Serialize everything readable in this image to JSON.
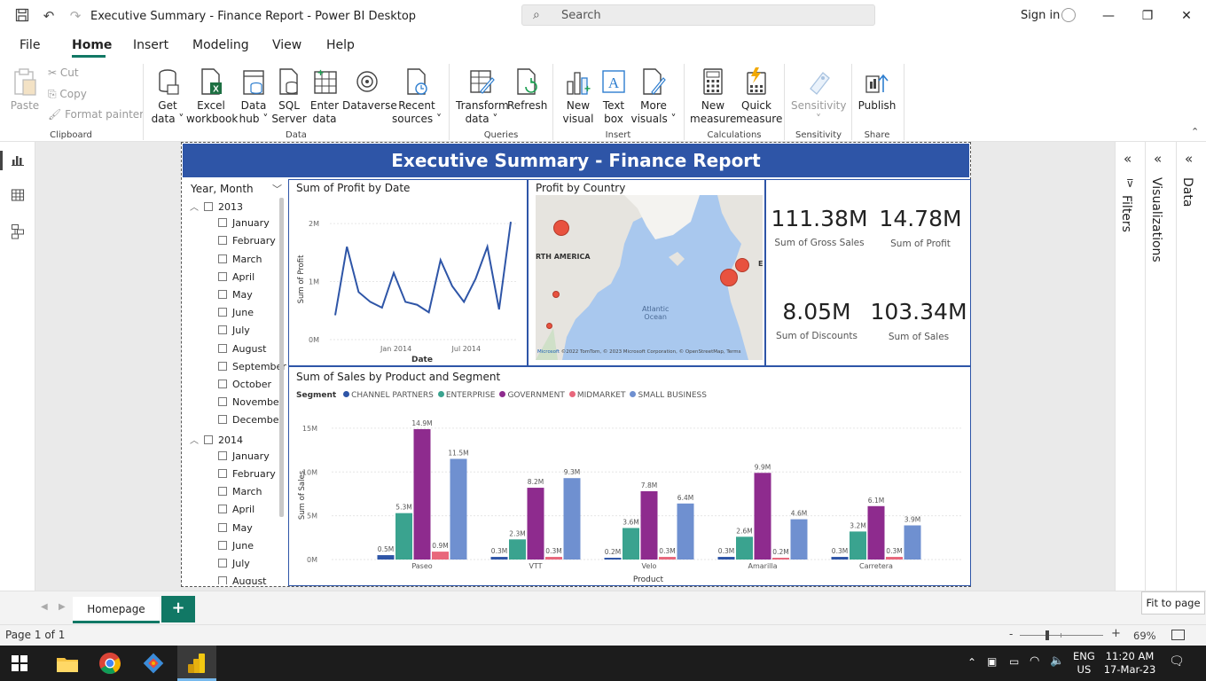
{
  "window": {
    "title": "Executive Summary - Finance Report - Power BI Desktop",
    "search_placeholder": "Search",
    "sign_in": "Sign in"
  },
  "menu": {
    "tabs": [
      "File",
      "Home",
      "Insert",
      "Modeling",
      "View",
      "Help"
    ],
    "active": "Home"
  },
  "ribbon": {
    "paste": "Paste",
    "cut": "Cut",
    "copy": "Copy",
    "format_painter": "Format painter",
    "groups": {
      "clipboard": "Clipboard",
      "data": "Data",
      "queries": "Queries",
      "insert": "Insert",
      "calculations": "Calculations",
      "sensitivity": "Sensitivity",
      "share": "Share"
    },
    "get_data": [
      "Get",
      "data"
    ],
    "excel_workbook": [
      "Excel",
      "workbook"
    ],
    "data_hub": [
      "Data",
      "hub"
    ],
    "sql_server": [
      "SQL",
      "Server"
    ],
    "enter_data": [
      "Enter",
      "data"
    ],
    "dataverse": "Dataverse",
    "recent_sources": [
      "Recent",
      "sources"
    ],
    "transform_data": [
      "Transform",
      "data"
    ],
    "refresh": "Refresh",
    "new_visual": [
      "New",
      "visual"
    ],
    "text_box": [
      "Text",
      "box"
    ],
    "more_visuals": [
      "More",
      "visuals"
    ],
    "new_measure": [
      "New",
      "measure"
    ],
    "quick_measure": [
      "Quick",
      "measure"
    ],
    "sensitivity_btn": "Sensitivity",
    "publish": "Publish"
  },
  "report": {
    "banner": "Executive Summary - Finance Report",
    "slicer": {
      "title": "Year, Month",
      "years": [
        {
          "year": "2013",
          "months": [
            "January",
            "February",
            "March",
            "April",
            "May",
            "June",
            "July",
            "August",
            "September",
            "October",
            "November",
            "December"
          ]
        },
        {
          "year": "2014",
          "months": [
            "January",
            "February",
            "March",
            "April",
            "May",
            "June",
            "July",
            "August"
          ]
        }
      ]
    },
    "profit_by_date": {
      "title": "Sum of Profit by Date",
      "xlabel": "Date",
      "ylabel": "Sum of Profit"
    },
    "profit_by_country": {
      "title": "Profit by Country",
      "map_label": "RTH AMERICA",
      "ocean_label": "Atlantic Ocean",
      "ocean_line1": "Atlantic",
      "ocean_line2": "Ocean",
      "edge_label": "E",
      "attribution": "©2022 TomTom, © 2023 Microsoft Corporation, © OpenStreetMap, Terms",
      "brand": "Microsoft"
    },
    "kpis": [
      {
        "value": "111.38M",
        "label": "Sum of Gross Sales"
      },
      {
        "value": "14.78M",
        "label": "Sum of Profit"
      },
      {
        "value": "8.05M",
        "label": "Sum of Discounts"
      },
      {
        "value": "103.34M",
        "label": "Sum of  Sales"
      }
    ],
    "sales_chart": {
      "title": "Sum of Sales by Product and Segment",
      "legend_title": "Segment",
      "xlabel": "Product",
      "ylabel": "Sum of Sales"
    }
  },
  "chart_data": [
    {
      "type": "line",
      "title": "Sum of Profit by Date",
      "xlabel": "Date",
      "ylabel": "Sum of Profit",
      "x": [
        "2013-09",
        "2013-10",
        "2013-11",
        "2013-12",
        "2014-01",
        "2014-02",
        "2014-03",
        "2014-04",
        "2014-05",
        "2014-06",
        "2014-07",
        "2014-08",
        "2014-09",
        "2014-10",
        "2014-11",
        "2014-12"
      ],
      "series": [
        {
          "values": [
            0.42,
            1.6,
            0.82,
            0.65,
            0.55,
            1.15,
            0.65,
            0.6,
            0.47,
            1.37,
            0.92,
            0.65,
            1.05,
            1.6,
            0.52,
            2.03
          ]
        }
      ],
      "yticks": [
        "0M",
        "1M",
        "2M"
      ],
      "xticks": [
        "Jan 2014",
        "Jul 2014"
      ],
      "ylim": [
        0,
        2.2
      ],
      "color": "#2e55a7"
    },
    {
      "type": "bar",
      "title": "Sum of Sales by Product and Segment",
      "xlabel": "Product",
      "ylabel": "Sum of Sales",
      "legend_title": "Segment",
      "categories": [
        "Paseo",
        "VTT",
        "Velo",
        "Amarilla",
        "Carretera"
      ],
      "series": [
        {
          "name": "CHANNEL PARTNERS",
          "color": "#2e55a7",
          "values": [
            0.5,
            0.3,
            0.2,
            0.3,
            0.3
          ],
          "labels": [
            "0.5M",
            "0.3M",
            "0.2M",
            "0.3M",
            "0.3M"
          ]
        },
        {
          "name": "ENTERPRISE",
          "color": "#3aa38f",
          "values": [
            5.3,
            2.3,
            3.6,
            2.6,
            3.2
          ],
          "labels": [
            "5.3M",
            "2.3M",
            "3.6M",
            "2.6M",
            "3.2M"
          ]
        },
        {
          "name": "GOVERNMENT",
          "color": "#8e2b8e",
          "values": [
            14.9,
            8.2,
            7.8,
            9.9,
            6.1
          ],
          "labels": [
            "14.9M",
            "8.2M",
            "7.8M",
            "9.9M",
            "6.1M"
          ]
        },
        {
          "name": "MIDMARKET",
          "color": "#e8677c",
          "values": [
            0.9,
            0.3,
            0.3,
            0.2,
            0.3
          ],
          "labels": [
            "0.9M",
            "0.3M",
            "0.3M",
            "0.2M",
            "0.3M"
          ]
        },
        {
          "name": "SMALL BUSINESS",
          "color": "#6f90d0",
          "values": [
            11.5,
            9.3,
            6.4,
            4.6,
            3.9
          ],
          "labels": [
            "11.5M",
            "9.3M",
            "6.4M",
            "4.6M",
            "3.9M"
          ]
        }
      ],
      "yticks": [
        "0M",
        "5M",
        "10M",
        "15M"
      ],
      "ylim": [
        0,
        15.5
      ]
    }
  ],
  "panes": {
    "filters": "Filters",
    "visualizations": "Visualizations",
    "data": "Data"
  },
  "pages": {
    "tabs": [
      "Homepage"
    ],
    "add": "+"
  },
  "tooltip": "Fit to page",
  "status": {
    "page": "Page 1 of 1",
    "zoom": "69%",
    "minus": "-",
    "plus": "+"
  },
  "taskbar": {
    "lang1": "ENG",
    "lang2": "US",
    "time": "11:20 AM",
    "date": "17-Mar-23"
  },
  "colors": {
    "accent": "#117865",
    "banner": "#2e55a7"
  }
}
